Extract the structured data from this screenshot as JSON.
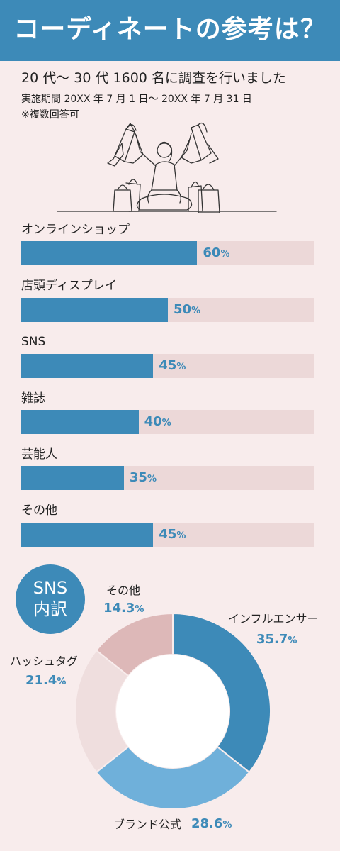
{
  "header": {
    "title": "コーディネートの参考は？"
  },
  "survey": {
    "subtitle": "20 代〜 30 代 1600 名に調査を行いました",
    "period": "実施期間 20XX 年 7 月 1 日〜 20XX 年 7 月 31 日",
    "note": "※複数回答可"
  },
  "badge": {
    "line1": "SNS",
    "line2": "内訳"
  },
  "colors": {
    "header": "#3d8ab8",
    "bar": "#3d8ab8",
    "track": "#ecd8d8",
    "background": "#f8ecec"
  },
  "chart_data": [
    {
      "type": "bar",
      "orientation": "horizontal",
      "categories": [
        "オンラインショップ",
        "店頭ディスプレイ",
        "SNS",
        "雑誌",
        "芸能人",
        "その他"
      ],
      "values": [
        60,
        50,
        45,
        40,
        35,
        45
      ],
      "unit": "%",
      "xlim": [
        0,
        100
      ],
      "grid": false
    },
    {
      "type": "pie",
      "subtype": "donut",
      "categories": [
        "インフルエンサー",
        "ブランド公式",
        "ハッシュタグ",
        "その他"
      ],
      "values": [
        35.7,
        28.6,
        21.4,
        14.3
      ],
      "unit": "%",
      "colors": [
        "#3d8ab8",
        "#6fb0da",
        "#efdede",
        "#ddb8b8"
      ]
    }
  ]
}
